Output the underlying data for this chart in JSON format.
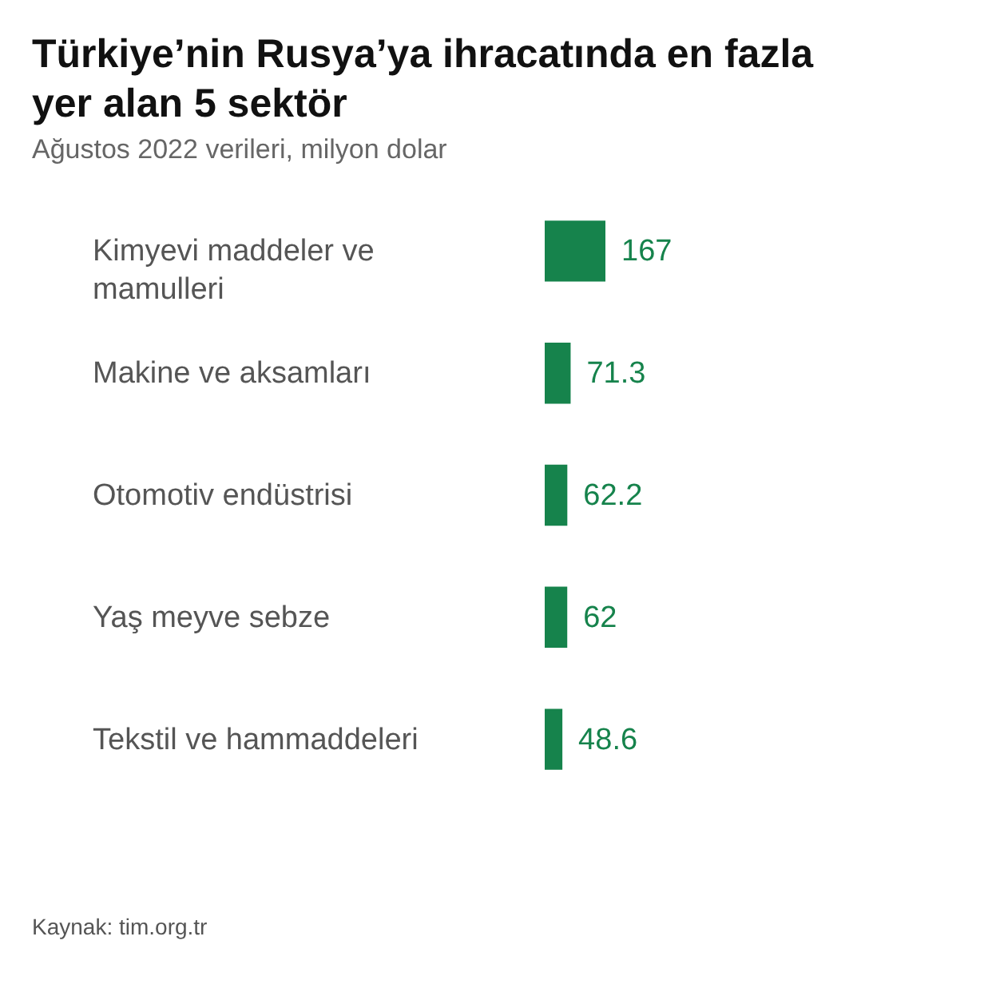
{
  "chart_data": {
    "type": "bar",
    "orientation": "horizontal",
    "title": "Türkiye’nin Rusya’ya ihracatında en fazla yer alan 5 sektör",
    "subtitle": "Ağustos 2022 verileri, milyon dolar",
    "categories": [
      "Kimyevi maddeler ve mamulleri",
      "Makine ve aksamları",
      "Otomotiv endüstrisi",
      "Yaş meyve sebze",
      "Tekstil ve hammaddeleri"
    ],
    "values": [
      167,
      71.3,
      62.2,
      62,
      48.6
    ],
    "color": "#16834c",
    "data_labels": true,
    "annotations": [
      "Kaynak: tim.org.tr"
    ]
  }
}
